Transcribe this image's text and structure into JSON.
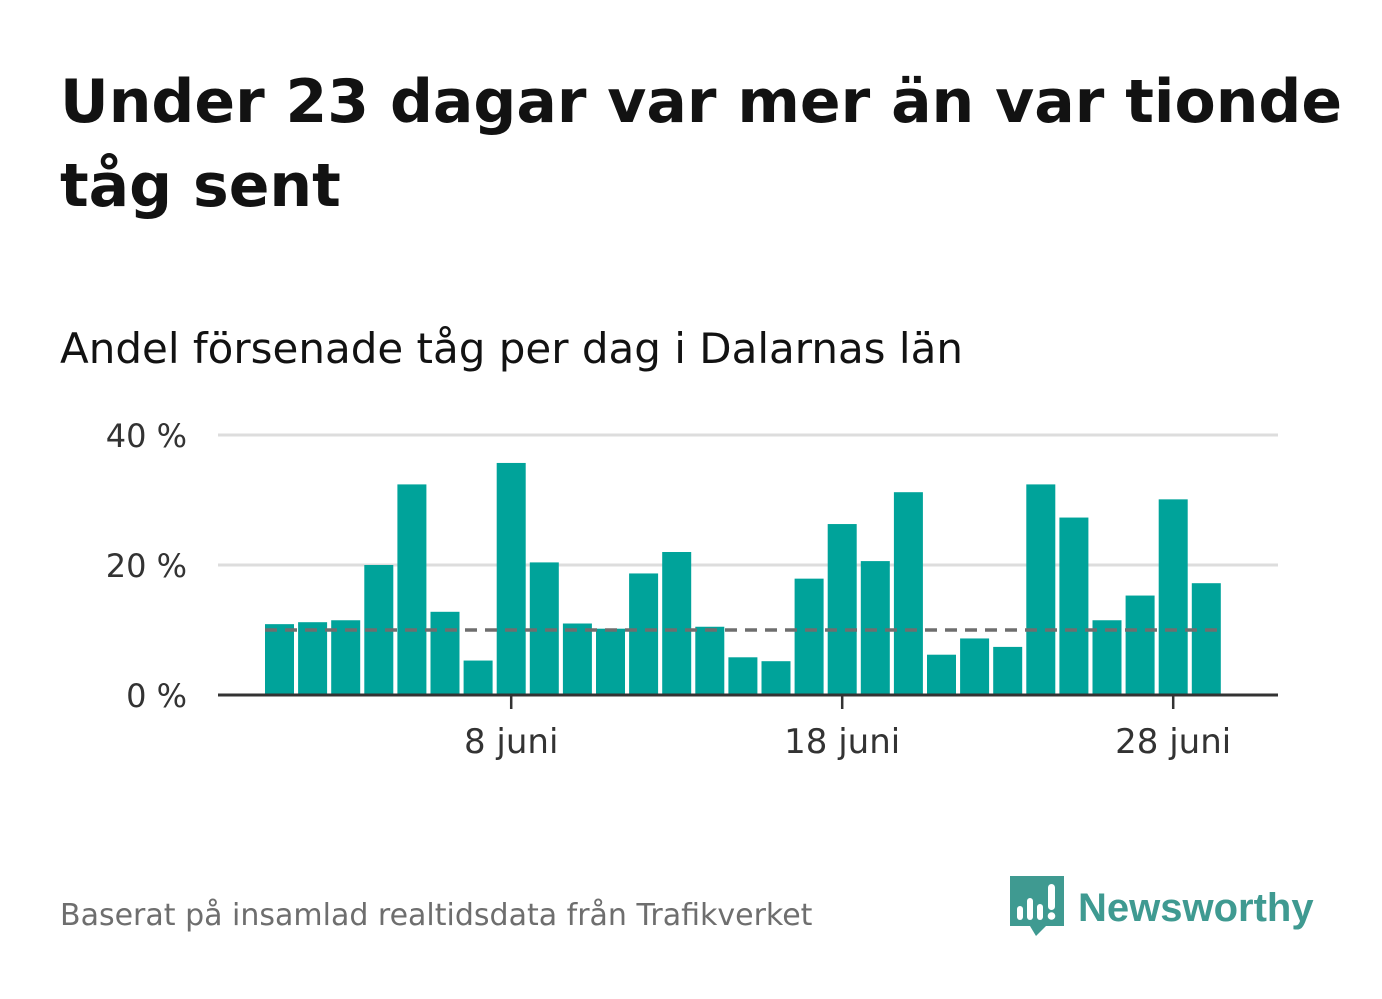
{
  "title": "Under 23 dagar var mer än var tionde tåg sent",
  "subtitle": "Andel försenade tåg per dag i Dalarnas län",
  "source": "Baserat på insamlad realtidsdata från Trafikverket",
  "brand": {
    "name": "Newsworthy",
    "icon": "newsworthy-logo-icon",
    "color": "#3f9a91"
  },
  "colors": {
    "bar": "#00a39a",
    "reference_line": "#6e6e6e",
    "grid": "#dddddd",
    "axis": "#333333"
  },
  "chart_data": {
    "type": "bar",
    "categories": [
      "1 juni",
      "2 juni",
      "3 juni",
      "4 juni",
      "5 juni",
      "6 juni",
      "7 juni",
      "8 juni",
      "9 juni",
      "10 juni",
      "11 juni",
      "12 juni",
      "13 juni",
      "14 juni",
      "15 juni",
      "16 juni",
      "17 juni",
      "18 juni",
      "19 juni",
      "20 juni",
      "21 juni",
      "22 juni",
      "23 juni",
      "24 juni",
      "25 juni",
      "26 juni",
      "27 juni",
      "28 juni",
      "29 juni"
    ],
    "values": [
      10.9,
      11.2,
      11.5,
      20.0,
      32.4,
      12.8,
      5.3,
      35.7,
      20.4,
      11.0,
      10.2,
      18.7,
      22.0,
      10.5,
      5.8,
      5.2,
      17.9,
      26.3,
      20.6,
      31.2,
      6.2,
      8.7,
      7.4,
      32.4,
      27.3,
      11.5,
      15.3,
      30.1,
      17.2
    ],
    "reference_value": 10,
    "ylim": [
      0,
      40
    ],
    "yticks": [
      0,
      20,
      40
    ],
    "ytick_labels": [
      "0 %",
      "20 %",
      "40 %"
    ],
    "xticks": [
      {
        "index": 7,
        "label": "8 juni"
      },
      {
        "index": 17,
        "label": "18 juni"
      },
      {
        "index": 27,
        "label": "28 juni"
      }
    ],
    "grid": true,
    "legend": "none"
  }
}
